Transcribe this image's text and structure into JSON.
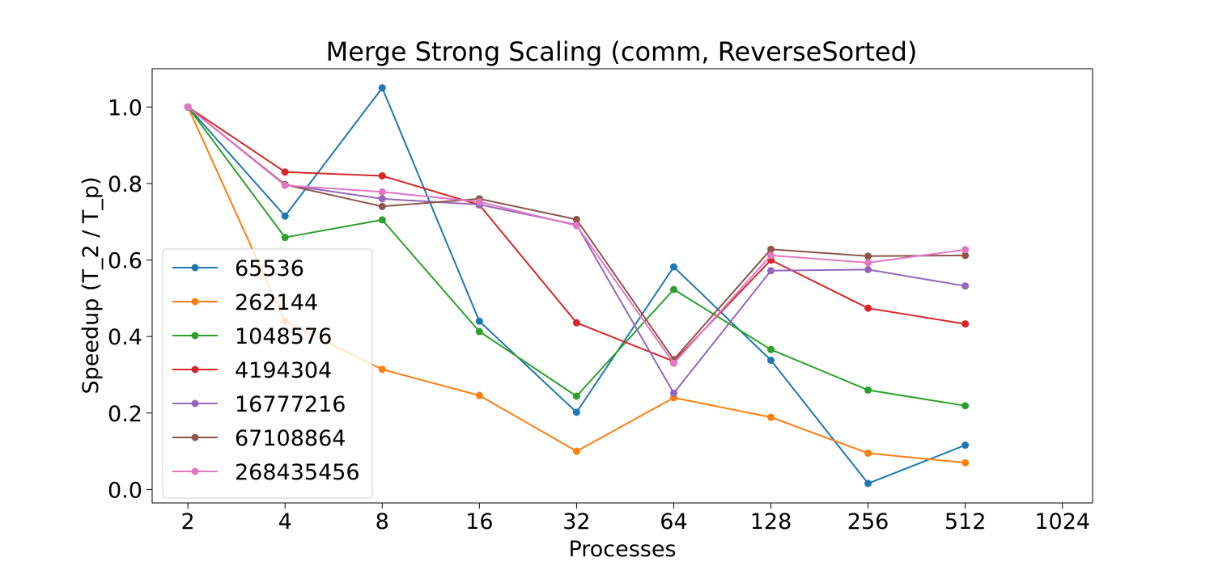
{
  "chart_data": {
    "type": "line",
    "title": "Merge Strong Scaling (comm, ReverseSorted)",
    "xlabel": "Processes",
    "ylabel": "Speedup (T_2 / T_p)",
    "x_scale": "log2",
    "x": [
      2,
      4,
      8,
      16,
      32,
      64,
      128,
      256,
      512
    ],
    "xticks": [
      "2",
      "4",
      "8",
      "16",
      "32",
      "64",
      "128",
      "256",
      "512",
      "1024"
    ],
    "xtick_values": [
      2,
      4,
      8,
      16,
      32,
      64,
      128,
      256,
      512,
      1024
    ],
    "yticks": [
      "0.0",
      "0.2",
      "0.4",
      "0.6",
      "0.8",
      "1.0"
    ],
    "ytick_values": [
      0.0,
      0.2,
      0.4,
      0.6,
      0.8,
      1.0
    ],
    "ylim": [
      -0.035,
      1.1
    ],
    "xlim": [
      1.55,
      1270
    ],
    "grid": false,
    "legend_position": "lower-left",
    "series": [
      {
        "name": "65536",
        "color": "#1f77b4",
        "values": [
          1.0,
          0.715,
          1.05,
          0.44,
          0.202,
          0.582,
          0.338,
          0.016,
          0.116
        ]
      },
      {
        "name": "262144",
        "color": "#ff7f0e",
        "values": [
          1.0,
          0.44,
          0.314,
          0.246,
          0.1,
          0.24,
          0.189,
          0.095,
          0.07
        ]
      },
      {
        "name": "1048576",
        "color": "#2ca02c",
        "values": [
          1.0,
          0.659,
          0.705,
          0.413,
          0.244,
          0.523,
          0.366,
          0.26,
          0.219
        ]
      },
      {
        "name": "4194304",
        "color": "#d62728",
        "values": [
          1.0,
          0.83,
          0.82,
          0.744,
          0.436,
          0.335,
          0.6,
          0.474,
          0.433
        ]
      },
      {
        "name": "16777216",
        "color": "#9467bd",
        "values": [
          1.0,
          0.797,
          0.76,
          0.745,
          0.692,
          0.252,
          0.572,
          0.575,
          0.532
        ]
      },
      {
        "name": "67108864",
        "color": "#8c564b",
        "values": [
          1.0,
          0.797,
          0.74,
          0.76,
          0.706,
          0.34,
          0.628,
          0.61,
          0.612
        ]
      },
      {
        "name": "268435456",
        "color": "#e377c2",
        "values": [
          1.0,
          0.795,
          0.778,
          0.752,
          0.69,
          0.33,
          0.612,
          0.593,
          0.627
        ]
      }
    ]
  }
}
